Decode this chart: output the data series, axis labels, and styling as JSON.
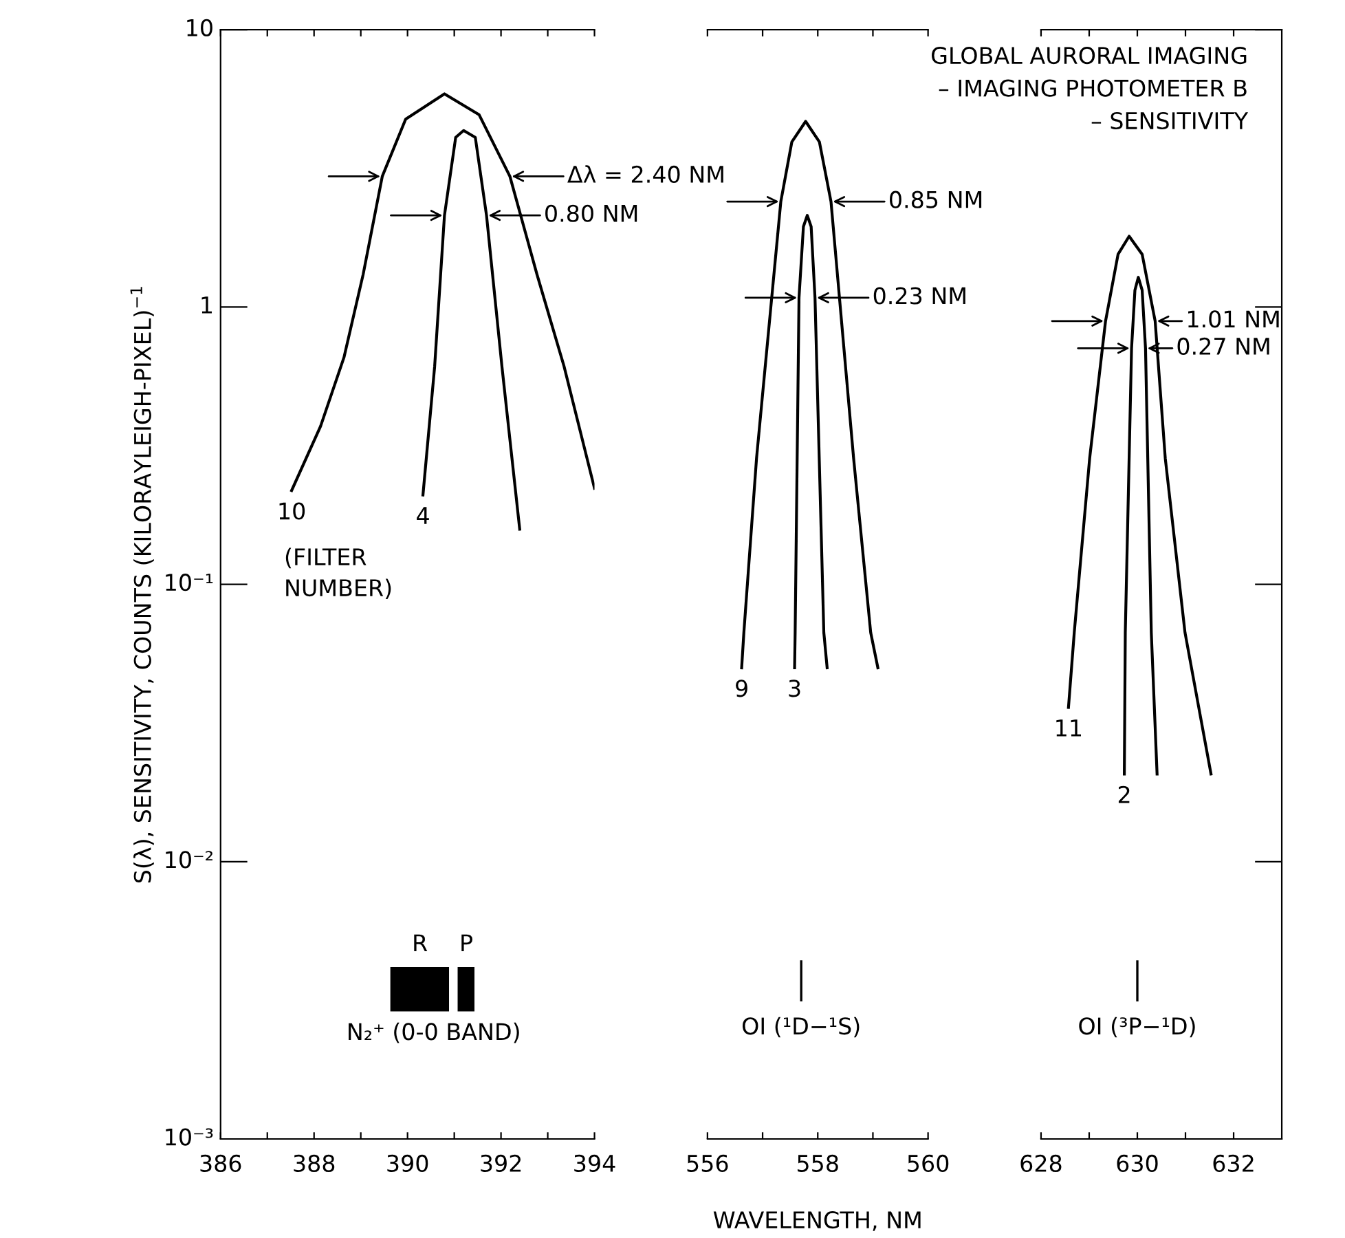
{
  "chart_data": [
    {
      "type": "line",
      "ylabel": "S(λ), SENSITIVITY, COUNTS (KILORAYLEIGH-PIXEL)$^{−1}$",
      "log": true,
      "xlim": [
        386,
        394
      ],
      "xticks": [
        386,
        {
          "value": 387,
          "label": null
        },
        388,
        {
          "value": 389,
          "label": null
        },
        390,
        {
          "value": 391,
          "label": null
        },
        392,
        {
          "value": 393,
          "label": null
        },
        394
      ],
      "ylim": [
        0.001,
        10
      ],
      "yticks": [
        {
          "value": 0.001,
          "label": "10⁻³"
        },
        {
          "value": 0.01,
          "label": "10⁻²"
        },
        {
          "value": 0.1,
          "label": "10⁻¹"
        },
        1,
        10
      ],
      "marker": "none",
      "line_style": "solid",
      "series": [
        {
          "name": "10",
          "color": "#000000",
          "x": [
            387.52,
            388.14,
            388.64,
            389.05,
            389.46,
            389.96,
            390.79,
            391.53,
            392.19,
            392.77,
            393.35,
            394.0
          ],
          "values": [
            0.218,
            0.372,
            0.658,
            1.31,
            2.96,
            4.76,
            5.87,
            4.94,
            2.96,
            1.31,
            0.61,
            0.222
          ]
        },
        {
          "name": "4",
          "color": "#000000",
          "x": [
            390.33,
            390.58,
            390.79,
            391.03,
            391.2,
            391.45,
            391.69,
            392.02,
            392.4
          ],
          "values": [
            0.21,
            0.61,
            2.14,
            4.09,
            4.33,
            4.09,
            2.14,
            0.61,
            0.158
          ]
        }
      ],
      "annotations": [
        {
          "text": "Δλ = 2.40 NM",
          "x": 392.19,
          "y": 2.96
        },
        {
          "text": "0.80 NM",
          "x": 391.69,
          "y": 2.14
        },
        "(FILTER\nNUMBER)",
        "N₂⁺ (0-0 BAND)",
        "R",
        "P"
      ]
    },
    {
      "type": "line",
      "xlabel": "WAVELENGTH, NM",
      "log": true,
      "tick_labels": "x",
      "xlim": [
        556,
        560
      ],
      "xticks": [
        556,
        {
          "value": 557,
          "label": null
        },
        558,
        {
          "value": 559,
          "label": null
        },
        560
      ],
      "ylim": [
        0.001,
        10
      ],
      "marker": "none",
      "line_style": "solid",
      "series": [
        {
          "name": "9",
          "color": "#000000",
          "x": [
            556.62,
            556.66,
            556.89,
            557.33,
            557.53,
            557.78,
            558.03,
            558.24,
            558.65,
            558.96,
            559.09
          ],
          "values": [
            0.05,
            0.067,
            0.285,
            2.4,
            3.94,
            4.67,
            3.94,
            2.4,
            0.285,
            0.067,
            0.05
          ]
        },
        {
          "name": "3",
          "color": "#000000",
          "x": [
            557.58,
            557.59,
            557.66,
            557.74,
            557.81,
            557.88,
            557.95,
            558.11,
            558.17
          ],
          "values": [
            0.05,
            0.067,
            1.08,
            1.95,
            2.14,
            1.95,
            1.08,
            0.067,
            0.05
          ]
        }
      ],
      "annotations": [
        {
          "text": "0.85 NM",
          "x": 558.24,
          "y": 2.4
        },
        {
          "text": "0.23 NM",
          "x": 557.95,
          "y": 1.08
        },
        "OI (¹D−¹S)"
      ]
    },
    {
      "type": "line",
      "title": "GLOBAL AURORAL IMAGING\n– IMAGING PHOTOMETER B\n– SENSITIVITY",
      "log": true,
      "tick_labels": "x",
      "xlim": [
        628,
        633
      ],
      "xticks": [
        628,
        {
          "value": 629,
          "label": null
        },
        630,
        {
          "value": 631,
          "label": null
        },
        632
      ],
      "ylim": [
        0.001,
        10
      ],
      "yticks": [
        {
          "value": 0.001,
          "label": null
        },
        {
          "value": 0.01,
          "label": null
        },
        {
          "value": 0.1,
          "label": null
        },
        {
          "value": 1,
          "label": null
        },
        {
          "value": 10,
          "label": null
        }
      ],
      "marker": "none",
      "line_style": "solid",
      "series": [
        {
          "name": "11",
          "color": "#000000",
          "x": [
            628.57,
            628.69,
            629.01,
            629.34,
            629.6,
            629.83,
            630.1,
            630.37,
            630.58,
            630.99,
            631.53
          ],
          "values": [
            0.036,
            0.067,
            0.285,
            0.89,
            1.55,
            1.8,
            1.55,
            0.89,
            0.285,
            0.067,
            0.0207
          ]
        },
        {
          "name": "2",
          "color": "#000000",
          "x": [
            629.73,
            629.75,
            629.88,
            629.95,
            630.02,
            630.1,
            630.17,
            630.29,
            630.41
          ],
          "values": [
            0.0207,
            0.067,
            0.71,
            1.15,
            1.28,
            1.15,
            0.71,
            0.067,
            0.0207
          ]
        }
      ],
      "annotations": [
        {
          "text": "1.01 NM",
          "x": 630.37,
          "y": 0.89
        },
        {
          "text": "0.27 NM",
          "x": 630.17,
          "y": 0.71
        },
        "OI (³P−¹D)"
      ]
    }
  ]
}
